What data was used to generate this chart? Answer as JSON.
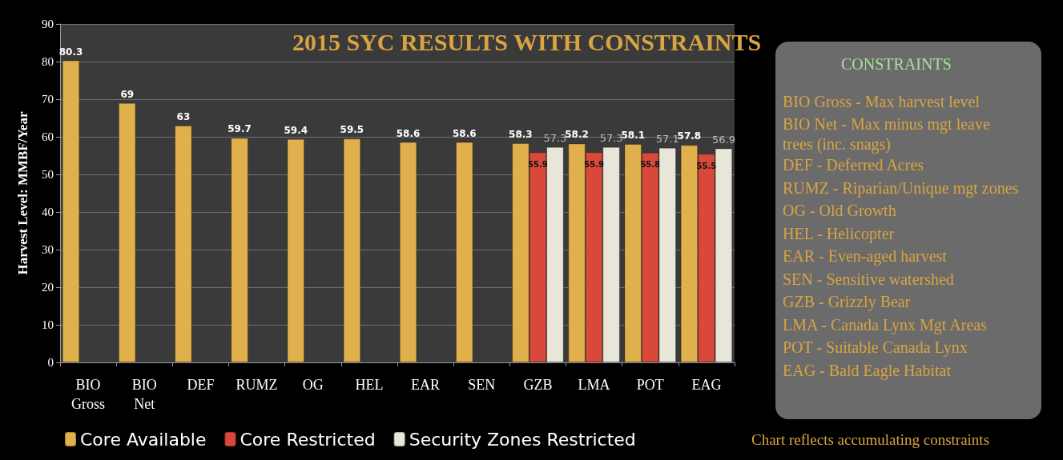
{
  "chart_data": {
    "type": "bar",
    "title": "2015 SYC RESULTS WITH CONSTRAINTS",
    "ylabel": "Harvest Level: MMBF/Year",
    "categories": [
      "BIO\nGross",
      "BIO\nNet",
      "DEF",
      "RUMZ",
      "OG",
      "HEL",
      "EAR",
      "SEN",
      "GZB",
      "LMA",
      "POT",
      "EAG"
    ],
    "series": [
      {
        "name": "Core Available",
        "color": "#e0b04c",
        "values": [
          80.3,
          69,
          63,
          59.7,
          59.4,
          59.5,
          58.6,
          58.6,
          58.3,
          58.2,
          58.1,
          57.8
        ]
      },
      {
        "name": "Core Restricted",
        "color": "#d8493b",
        "values": [
          null,
          null,
          null,
          null,
          null,
          null,
          null,
          null,
          55.9,
          55.9,
          55.8,
          55.5
        ]
      },
      {
        "name": "Security Zones Restricted",
        "color": "#e8e6d8",
        "values": [
          null,
          null,
          null,
          null,
          null,
          null,
          null,
          null,
          57.3,
          57.3,
          57.1,
          56.9
        ]
      }
    ],
    "ylim": [
      0,
      90
    ],
    "yticks": [
      0,
      10,
      20,
      30,
      40,
      50,
      60,
      70,
      80,
      90
    ],
    "grid": "y",
    "legend": "bottom left",
    "data_labels": true,
    "annotations": [
      "CONSTRAINTS",
      "BIO Gross - Max harvest level",
      "BIO Net - Max minus mgt leave trees (inc. snags)",
      "DEF - Deferred Acres",
      "RUMZ - Riparian/Unique mgt zones",
      "OG - Old Growth",
      "HEL - Helicopter",
      "EAR - Even-aged harvest",
      "SEN - Sensitive watershed",
      "GZB - Grizzly Bear",
      "LMA - Canada Lynx Mgt Areas",
      "POT - Suitable Canada Lynx",
      "EAG - Bald Eagle Habitat",
      "Chart reflects accumulating constraints"
    ]
  }
}
